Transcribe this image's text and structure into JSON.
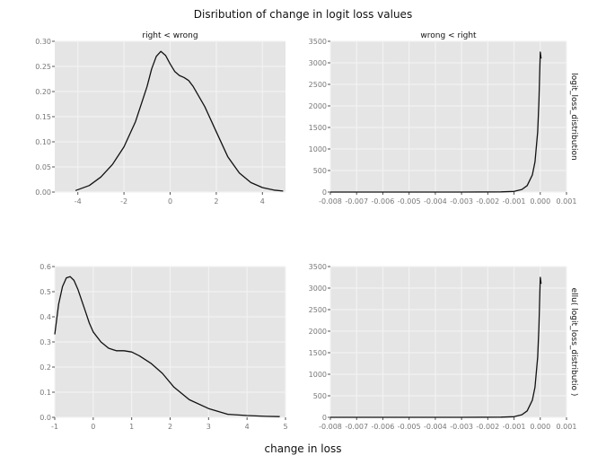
{
  "figure": {
    "title": "Disribution of change in logit loss values",
    "xlabel": "change in loss",
    "panel_background": "#e5e5e5",
    "grid_color": "#f2f2f2",
    "line_color": "#111111"
  },
  "chart_data": [
    {
      "type": "line",
      "facet_col": "right < wrong",
      "facet_row": "",
      "xlim": [
        -5,
        5
      ],
      "ylim": [
        0,
        0.3
      ],
      "x_ticks": [
        -4,
        -2,
        0,
        2,
        4
      ],
      "x_tick_labels": [
        "-4",
        "-2",
        "0",
        "2",
        "4"
      ],
      "y_ticks": [
        0.0,
        0.05,
        0.1,
        0.15,
        0.2,
        0.25,
        0.3
      ],
      "y_tick_labels": [
        "0.00",
        "0.05",
        "0.10",
        "0.15",
        "0.20",
        "0.25",
        "0.30"
      ],
      "grid": true,
      "series": [
        {
          "x": [
            -4.1,
            -3.5,
            -3.0,
            -2.5,
            -2.0,
            -1.5,
            -1.0,
            -0.8,
            -0.6,
            -0.4,
            -0.2,
            0.0,
            0.2,
            0.4,
            0.6,
            0.8,
            1.0,
            1.5,
            2.0,
            2.5,
            3.0,
            3.5,
            4.0,
            4.5,
            4.9
          ],
          "y": [
            0.003,
            0.013,
            0.03,
            0.055,
            0.09,
            0.14,
            0.21,
            0.245,
            0.27,
            0.28,
            0.272,
            0.255,
            0.24,
            0.232,
            0.228,
            0.222,
            0.21,
            0.17,
            0.12,
            0.07,
            0.038,
            0.019,
            0.009,
            0.004,
            0.002
          ]
        }
      ]
    },
    {
      "type": "line",
      "facet_col": "wrong < right",
      "facet_row": "logit_loss_distribution",
      "xlim": [
        -0.008,
        0.001
      ],
      "ylim": [
        0,
        3500
      ],
      "x_ticks": [
        -0.008,
        -0.007,
        -0.006,
        -0.005,
        -0.004,
        -0.003,
        -0.002,
        -0.001,
        0.0,
        0.001
      ],
      "x_tick_labels": [
        "-0.008",
        "-0.007",
        "-0.006",
        "-0.005",
        "-0.004",
        "-0.003",
        "-0.002",
        "-0.001",
        "0.000",
        "0.001"
      ],
      "y_ticks": [
        0,
        500,
        1000,
        1500,
        2000,
        2500,
        3000,
        3500
      ],
      "y_tick_labels": [
        "0",
        "500",
        "1000",
        "1500",
        "2000",
        "2500",
        "3000",
        "3500"
      ],
      "grid": true,
      "series": [
        {
          "x": [
            -0.008,
            -0.003,
            -0.0015,
            -0.001,
            -0.0007,
            -0.0005,
            -0.0003,
            -0.0002,
            -0.0001,
            -5e-05,
            0.0,
            3e-05
          ],
          "y": [
            0,
            0,
            5,
            15,
            60,
            150,
            400,
            700,
            1400,
            2100,
            3250,
            3100
          ]
        }
      ]
    },
    {
      "type": "line",
      "facet_col": "",
      "facet_row": "",
      "xlim": [
        -1,
        5
      ],
      "ylim": [
        0,
        0.6
      ],
      "x_ticks": [
        -1,
        0,
        1,
        2,
        3,
        4,
        5
      ],
      "x_tick_labels": [
        "-1",
        "0",
        "1",
        "2",
        "3",
        "4",
        "5"
      ],
      "y_ticks": [
        0.0,
        0.1,
        0.2,
        0.3,
        0.4,
        0.5,
        0.6
      ],
      "y_tick_labels": [
        "0.0",
        "0.1",
        "0.2",
        "0.3",
        "0.4",
        "0.5",
        "0.6"
      ],
      "grid": true,
      "series": [
        {
          "x": [
            -1.0,
            -0.9,
            -0.8,
            -0.7,
            -0.6,
            -0.5,
            -0.4,
            -0.3,
            -0.2,
            -0.1,
            0.0,
            0.2,
            0.4,
            0.6,
            0.8,
            1.0,
            1.2,
            1.5,
            1.8,
            2.1,
            2.5,
            3.0,
            3.5,
            4.0,
            4.5,
            4.85
          ],
          "y": [
            0.33,
            0.45,
            0.52,
            0.555,
            0.56,
            0.545,
            0.51,
            0.465,
            0.42,
            0.375,
            0.34,
            0.3,
            0.275,
            0.265,
            0.265,
            0.26,
            0.245,
            0.215,
            0.175,
            0.12,
            0.07,
            0.035,
            0.012,
            0.007,
            0.004,
            0.003
          ]
        }
      ]
    },
    {
      "type": "line",
      "facet_col": "",
      "facet_row": "ellu( logit_loss_distributio )",
      "xlim": [
        -0.008,
        0.001
      ],
      "ylim": [
        0,
        3500
      ],
      "x_ticks": [
        -0.008,
        -0.007,
        -0.006,
        -0.005,
        -0.004,
        -0.003,
        -0.002,
        -0.001,
        0.0,
        0.001
      ],
      "x_tick_labels": [
        "-0.008",
        "-0.007",
        "-0.006",
        "-0.005",
        "-0.004",
        "-0.003",
        "-0.002",
        "-0.001",
        "0.000",
        "0.001"
      ],
      "y_ticks": [
        0,
        500,
        1000,
        1500,
        2000,
        2500,
        3000,
        3500
      ],
      "y_tick_labels": [
        "0",
        "500",
        "1000",
        "1500",
        "2000",
        "2500",
        "3000",
        "3500"
      ],
      "grid": true,
      "series": [
        {
          "x": [
            -0.008,
            -0.003,
            -0.0015,
            -0.001,
            -0.0007,
            -0.0005,
            -0.0003,
            -0.0002,
            -0.0001,
            -5e-05,
            0.0,
            3e-05
          ],
          "y": [
            0,
            0,
            5,
            15,
            60,
            150,
            400,
            700,
            1400,
            2100,
            3250,
            3100
          ]
        }
      ]
    }
  ]
}
